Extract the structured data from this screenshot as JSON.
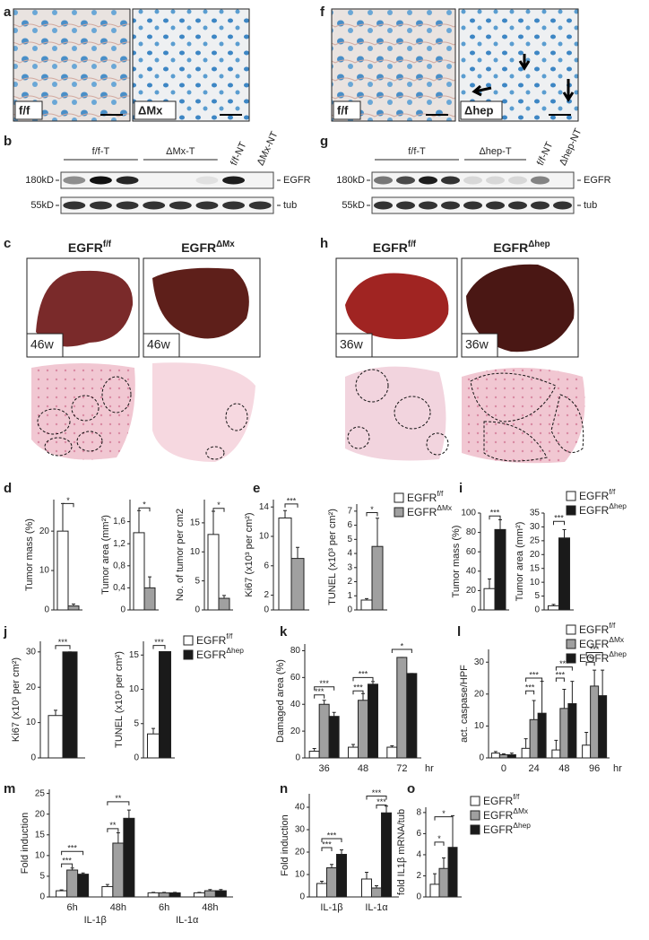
{
  "panel_letters": [
    "a",
    "b",
    "c",
    "d",
    "e",
    "f",
    "g",
    "h",
    "i",
    "j",
    "k",
    "l",
    "m",
    "n",
    "o"
  ],
  "micrograph_labels": [
    "f/f",
    "ΔMx",
    "f/f",
    "Δhep"
  ],
  "blots": [
    {
      "lanes": [
        "f/f-T",
        "ΔMx-T",
        "f/f-NT",
        "ΔMx-NT"
      ],
      "markers": [
        "180kD",
        "55kD"
      ],
      "proteins": [
        "EGFR",
        "tub"
      ]
    },
    {
      "lanes": [
        "f/f-T",
        "Δhep-T",
        "f/f-NT",
        "Δhep-NT"
      ],
      "markers": [
        "180kD",
        "55kD"
      ],
      "proteins": [
        "EGFR",
        "tub"
      ]
    }
  ],
  "liver_titles": [
    {
      "text": "EGFR",
      "sup": "f/f"
    },
    {
      "text": "EGFR",
      "sup": "ΔMx"
    },
    {
      "text": "EGFR",
      "sup": "f/f"
    },
    {
      "text": "EGFR",
      "sup": "Δhep"
    }
  ],
  "ages": [
    "46w",
    "46w",
    "36w",
    "36w"
  ],
  "chart_data": [
    {
      "type": "bar",
      "ylabel": "Tumor mass (%)",
      "categories": [
        null
      ],
      "series": [
        {
          "color": "#ffffff",
          "values": [
            20
          ],
          "errors": [
            7
          ]
        },
        {
          "color": "#a0a0a0",
          "values": [
            1
          ],
          "errors": [
            0.5
          ]
        }
      ],
      "ylim": [
        0,
        28
      ],
      "yticks": [
        0,
        10,
        20
      ],
      "annotations": [
        "*"
      ],
      "legend": false
    },
    {
      "type": "bar",
      "ylabel": "Tumor area (mm²)",
      "categories": [
        null
      ],
      "series": [
        {
          "color": "#ffffff",
          "values": [
            1.4
          ],
          "errors": [
            0.4
          ]
        },
        {
          "color": "#a0a0a0",
          "values": [
            0.4
          ],
          "errors": [
            0.2
          ]
        }
      ],
      "ylim": [
        0,
        2.0
      ],
      "yticks": [
        0,
        {
          "value": 0.4,
          "label": "0,4"
        },
        {
          "value": 0.8,
          "label": "0,8"
        },
        {
          "value": 1.2,
          "label": "1,2"
        },
        {
          "value": 1.6,
          "label": "1,6"
        }
      ],
      "annotations": [
        "*"
      ],
      "legend": false
    },
    {
      "type": "bar",
      "ylabel": "No. of tumor per cm2",
      "categories": [
        null
      ],
      "series": [
        {
          "color": "#ffffff",
          "values": [
            13
          ],
          "errors": [
            4
          ]
        },
        {
          "color": "#a0a0a0",
          "values": [
            2
          ],
          "errors": [
            0.5
          ]
        }
      ],
      "ylim": [
        0,
        19
      ],
      "yticks": [
        0,
        5,
        10,
        15
      ],
      "annotations": [
        "*"
      ],
      "legend": false
    },
    {
      "type": "bar",
      "ylabel": "Ki67 (x10³ per cm²)",
      "categories": [
        null
      ],
      "series": [
        {
          "name": "EGFR",
          "name_sup": "f/f",
          "color": "#ffffff",
          "values": [
            12.5
          ],
          "errors": [
            1
          ]
        },
        {
          "name": "EGFR",
          "name_sup": "ΔMx",
          "color": "#a0a0a0",
          "values": [
            7
          ],
          "errors": [
            1.5
          ]
        }
      ],
      "ylim": [
        0,
        15
      ],
      "yticks": [
        0,
        2,
        6,
        10,
        14
      ],
      "annotations": [
        "***"
      ],
      "legend": false
    },
    {
      "type": "bar",
      "ylabel": "TUNEL (x10³ per cm²)",
      "categories": [
        null
      ],
      "series": [
        {
          "name": "EGFR",
          "name_sup": "f/f",
          "color": "#ffffff",
          "values": [
            0.7
          ],
          "errors": [
            0.1
          ]
        },
        {
          "name": "EGFR",
          "name_sup": "ΔMx",
          "color": "#a0a0a0",
          "values": [
            4.5
          ],
          "errors": [
            2
          ]
        }
      ],
      "ylim": [
        0,
        7.5
      ],
      "yticks": [
        0,
        1,
        2,
        3,
        4,
        5,
        6,
        7
      ],
      "annotations": [
        "*"
      ],
      "legend": true
    },
    {
      "type": "bar",
      "ylabel": "Tumor mass (%)",
      "categories": [
        null
      ],
      "series": [
        {
          "name": "EGFR",
          "name_sup": "f/f",
          "color": "#ffffff",
          "values": [
            22
          ],
          "errors": [
            10
          ]
        },
        {
          "name": "EGFR",
          "name_sup": "Δhep",
          "color": "#1a1a1a",
          "values": [
            83
          ],
          "errors": [
            10
          ]
        }
      ],
      "ylim": [
        0,
        100
      ],
      "yticks": [
        0,
        20,
        40,
        60,
        80,
        100
      ],
      "annotations": [
        "***"
      ],
      "legend": false
    },
    {
      "type": "bar",
      "ylabel": "Tumor area (mm²)",
      "categories": [
        null
      ],
      "series": [
        {
          "name": "EGFR",
          "name_sup": "f/f",
          "color": "#ffffff",
          "values": [
            1.5
          ],
          "errors": [
            0.5
          ]
        },
        {
          "name": "EGFR",
          "name_sup": "Δhep",
          "color": "#1a1a1a",
          "values": [
            26
          ],
          "errors": [
            3
          ]
        }
      ],
      "ylim": [
        0,
        35
      ],
      "yticks": [
        0,
        5,
        10,
        15,
        20,
        25,
        30,
        35
      ],
      "annotations": [
        "***"
      ],
      "legend": true
    },
    {
      "type": "bar",
      "ylabel": "Ki67 (x10³ per cm²)",
      "categories": [
        null
      ],
      "series": [
        {
          "name": "EGFR",
          "name_sup": "f/f",
          "color": "#ffffff",
          "values": [
            12
          ],
          "errors": [
            1.5
          ]
        },
        {
          "name": "EGFR",
          "name_sup": "Δhep",
          "color": "#1a1a1a",
          "values": [
            30
          ],
          "errors": [
            0
          ]
        }
      ],
      "ylim": [
        0,
        33
      ],
      "yticks": [
        0,
        10,
        20,
        30
      ],
      "annotations": [
        "***"
      ],
      "legend": false
    },
    {
      "type": "bar",
      "ylabel": "TUNEL (x10³ per cm²)",
      "categories": [
        null
      ],
      "series": [
        {
          "name": "EGFR",
          "name_sup": "f/f",
          "color": "#ffffff",
          "values": [
            3.5
          ],
          "errors": [
            0.8
          ]
        },
        {
          "name": "EGFR",
          "name_sup": "Δhep",
          "color": "#1a1a1a",
          "values": [
            15.5
          ],
          "errors": [
            0
          ]
        }
      ],
      "ylim": [
        0,
        17
      ],
      "yticks": [
        0,
        5,
        10,
        15
      ],
      "annotations": [
        "***"
      ],
      "legend": true
    },
    {
      "type": "bar",
      "ylabel": "Damaged area (%)",
      "categories": [
        "36",
        "48",
        "72"
      ],
      "x_unit": "hr",
      "series": [
        {
          "color": "#ffffff",
          "values": [
            5,
            8,
            8
          ],
          "errors": [
            2,
            2,
            1
          ]
        },
        {
          "color": "#a0a0a0",
          "values": [
            40,
            43,
            75
          ],
          "errors": [
            3,
            5,
            0
          ]
        },
        {
          "color": "#1a1a1a",
          "values": [
            31,
            55,
            63
          ],
          "errors": [
            3,
            2,
            0
          ]
        }
      ],
      "ylim": [
        0,
        85
      ],
      "yticks": [
        0,
        20,
        40,
        60,
        80
      ],
      "annotations": [
        "***",
        "***",
        "***",
        "***",
        "*"
      ],
      "legend": false
    },
    {
      "type": "bar",
      "ylabel": "act. caspase/HPF",
      "categories": [
        "0",
        "24",
        "48",
        "96"
      ],
      "x_unit": "hr",
      "series": [
        {
          "name": "EGFR",
          "name_sup": "f/f",
          "color": "#ffffff",
          "values": [
            1.5,
            3,
            2.5,
            4
          ],
          "errors": [
            0.5,
            3,
            3,
            4
          ]
        },
        {
          "name": "EGFR",
          "name_sup": "ΔMx",
          "color": "#a0a0a0",
          "values": [
            1,
            12,
            15.5,
            22.5
          ],
          "errors": [
            0.3,
            6,
            6,
            5
          ]
        },
        {
          "name": "EGFR",
          "name_sup": "Δhep",
          "color": "#1a1a1a",
          "values": [
            1,
            14,
            17,
            19.5
          ],
          "errors": [
            0.5,
            10,
            7,
            8
          ]
        }
      ],
      "ylim": [
        0,
        34
      ],
      "yticks": [
        0,
        10,
        20,
        30
      ],
      "annotations": [
        "***",
        "***",
        "***",
        "***",
        "***",
        "***"
      ],
      "legend": true
    },
    {
      "type": "bar",
      "ylabel": "Fold induction",
      "categories": [
        "6h",
        "48h",
        "6h",
        "48h"
      ],
      "groups": [
        "IL-1β",
        "IL-1α"
      ],
      "series": [
        {
          "color": "#ffffff",
          "values": [
            1.5,
            2.5,
            1,
            1
          ],
          "errors": [
            0.2,
            0.5,
            0.1,
            0.1
          ]
        },
        {
          "color": "#a0a0a0",
          "values": [
            6.5,
            13,
            1,
            1.5
          ],
          "errors": [
            0.5,
            2.5,
            0.1,
            0.3
          ]
        },
        {
          "color": "#1a1a1a",
          "values": [
            5.5,
            19,
            1,
            1.5
          ],
          "errors": [
            0.3,
            2,
            0.1,
            0.3
          ]
        }
      ],
      "ylim": [
        0,
        26
      ],
      "yticks": [
        0,
        5,
        10,
        15,
        20,
        25
      ],
      "annotations": [
        "***",
        "***",
        "**",
        "**"
      ],
      "legend": false
    },
    {
      "type": "bar",
      "ylabel": "Fold induction",
      "categories": [
        "IL-1β",
        "IL-1α"
      ],
      "series": [
        {
          "color": "#ffffff",
          "values": [
            6,
            8
          ],
          "errors": [
            1,
            3
          ]
        },
        {
          "color": "#a0a0a0",
          "values": [
            13,
            4
          ],
          "errors": [
            1.5,
            1
          ]
        },
        {
          "color": "#1a1a1a",
          "values": [
            19,
            37.5
          ],
          "errors": [
            2,
            3
          ]
        }
      ],
      "ylim": [
        0,
        46
      ],
      "yticks": [
        0,
        10,
        20,
        30,
        40
      ],
      "annotations": [
        "***",
        "***",
        "***",
        "***"
      ],
      "legend": false
    },
    {
      "type": "bar",
      "ylabel": "fold IL1β mRNA/tub",
      "categories": [
        null
      ],
      "series": [
        {
          "name": "EGFR",
          "name_sup": "f/f",
          "color": "#ffffff",
          "values": [
            1.2
          ],
          "errors": [
            1
          ]
        },
        {
          "name": "EGFR",
          "name_sup": "ΔMx",
          "color": "#a0a0a0",
          "values": [
            2.7
          ],
          "errors": [
            1
          ]
        },
        {
          "name": "EGFR",
          "name_sup": "Δhep",
          "color": "#1a1a1a",
          "values": [
            4.7
          ],
          "errors": [
            3
          ]
        }
      ],
      "ylim": [
        0,
        8.5
      ],
      "yticks": [
        0,
        2,
        4,
        6,
        8
      ],
      "annotations": [
        "*",
        "*"
      ],
      "legend": true
    }
  ]
}
